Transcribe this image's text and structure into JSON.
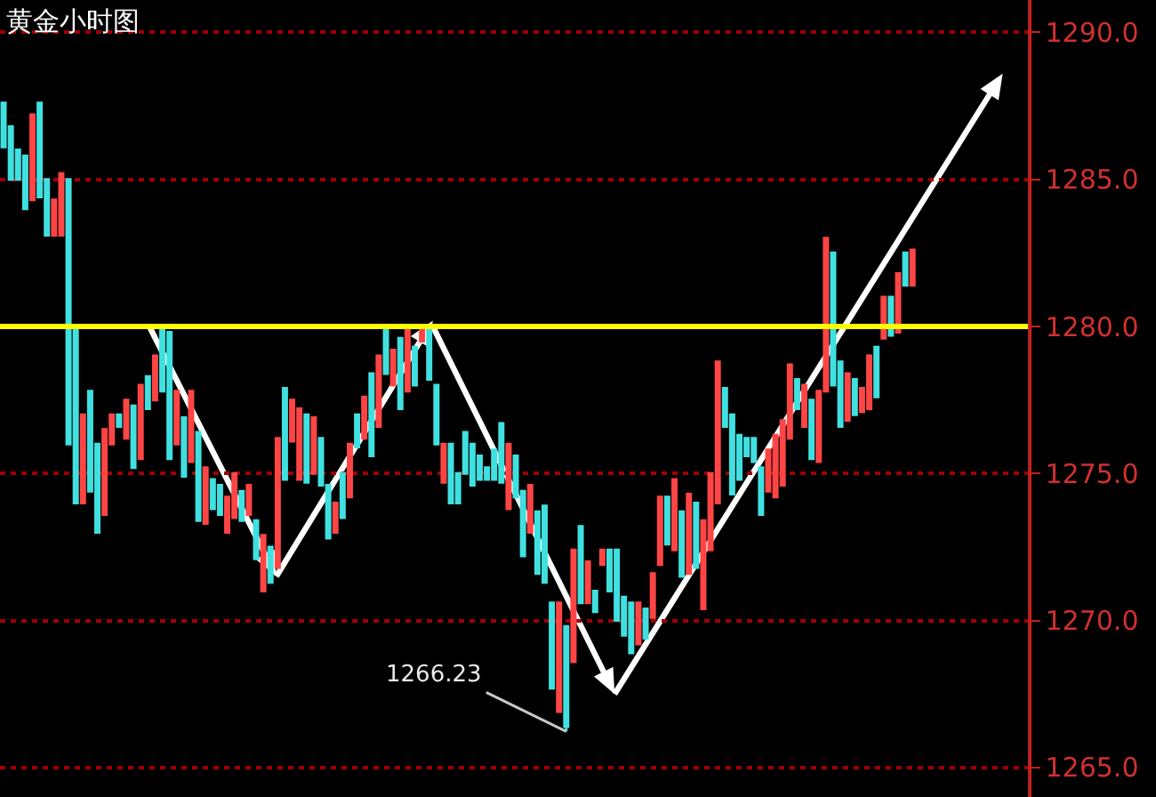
{
  "chart_data": {
    "type": "candlestick",
    "title": "黄金小时图",
    "categories": [
      null,
      null,
      null,
      null,
      null,
      null,
      null,
      null,
      null,
      null,
      null,
      null,
      null,
      null,
      null,
      null,
      null,
      null,
      null,
      null,
      null,
      null,
      null,
      null,
      null,
      null,
      null,
      null,
      null,
      null,
      null,
      null,
      null,
      null,
      null,
      null,
      null,
      null,
      null,
      null,
      null,
      null,
      null,
      null,
      null,
      null,
      null,
      null,
      null,
      null,
      null,
      null,
      null,
      null,
      null,
      null,
      null,
      null,
      null,
      null,
      null,
      null,
      null,
      null,
      null,
      null,
      null,
      null,
      null,
      null,
      null,
      null,
      null,
      null,
      null,
      null,
      null,
      null,
      null,
      null,
      null,
      null,
      null,
      null,
      null,
      null,
      null,
      null,
      null,
      null,
      null,
      null,
      null,
      null,
      null,
      null,
      null,
      null,
      null,
      null,
      null,
      null,
      null,
      null,
      null,
      null,
      null,
      null,
      null,
      null,
      null,
      null,
      null,
      null,
      null,
      null,
      null,
      null,
      null,
      null,
      null,
      null,
      null,
      null,
      null,
      null,
      null
    ],
    "ohlc": [
      [
        1287.6,
        1287.6,
        1286.1,
        1286.1
      ],
      [
        1286.8,
        1286.8,
        1285.0,
        1285.0
      ],
      [
        1286.0,
        1286.0,
        1285.0,
        1285.0
      ],
      [
        1285.8,
        1285.8,
        1284.0,
        1284.0
      ],
      [
        1284.3,
        1287.2,
        1284.3,
        1287.2
      ],
      [
        1287.6,
        1287.6,
        1284.4,
        1284.4
      ],
      [
        1285.0,
        1285.0,
        1283.1,
        1283.1
      ],
      [
        1283.1,
        1284.3,
        1283.1,
        1284.3
      ],
      [
        1283.1,
        1285.2,
        1283.1,
        1285.2
      ],
      [
        1285.0,
        1285.0,
        1276.0,
        1276.0
      ],
      [
        1279.9,
        1279.9,
        1274.0,
        1274.0
      ],
      [
        1274.0,
        1277.0,
        1274.0,
        1277.0
      ],
      [
        1277.8,
        1277.8,
        1274.4,
        1274.4
      ],
      [
        1276.0,
        1276.0,
        1273.0,
        1273.0
      ],
      [
        1273.6,
        1276.5,
        1273.6,
        1276.5
      ],
      [
        1276.0,
        1277.0,
        1276.0,
        1277.0
      ],
      [
        1277.0,
        1277.0,
        1276.6,
        1276.6
      ],
      [
        1276.2,
        1277.5,
        1276.2,
        1277.5
      ],
      [
        1277.3,
        1277.3,
        1275.2,
        1275.2
      ],
      [
        1275.5,
        1278.0,
        1275.5,
        1278.0
      ],
      [
        1278.3,
        1278.3,
        1277.2,
        1277.2
      ],
      [
        1277.5,
        1279.0,
        1277.5,
        1279.0
      ],
      [
        1280.0,
        1280.0,
        1277.8,
        1277.8
      ],
      [
        1279.8,
        1279.8,
        1275.5,
        1275.5
      ],
      [
        1276.0,
        1277.8,
        1276.0,
        1277.8
      ],
      [
        1276.9,
        1276.9,
        1274.9,
        1274.9
      ],
      [
        1275.4,
        1277.8,
        1275.4,
        1277.8
      ],
      [
        1276.4,
        1276.4,
        1273.4,
        1273.4
      ],
      [
        1273.3,
        1275.2,
        1273.3,
        1275.2
      ],
      [
        1274.8,
        1274.8,
        1273.8,
        1273.8
      ],
      [
        1274.6,
        1274.6,
        1273.6,
        1273.6
      ],
      [
        1273.0,
        1274.2,
        1273.0,
        1274.2
      ],
      [
        1273.5,
        1275.0,
        1273.5,
        1275.0
      ],
      [
        1274.4,
        1274.4,
        1273.4,
        1273.4
      ],
      [
        1273.6,
        1274.6,
        1273.6,
        1274.6
      ],
      [
        1273.4,
        1273.4,
        1272.1,
        1272.1
      ],
      [
        1271.0,
        1272.9,
        1271.0,
        1272.9
      ],
      [
        1272.5,
        1272.5,
        1271.3,
        1271.3
      ],
      [
        1271.8,
        1276.2,
        1271.8,
        1276.2
      ],
      [
        1277.9,
        1277.9,
        1274.8,
        1274.8
      ],
      [
        1276.1,
        1277.5,
        1276.1,
        1277.5
      ],
      [
        1274.8,
        1277.2,
        1274.8,
        1277.2
      ],
      [
        1277.0,
        1277.0,
        1274.7,
        1274.7
      ],
      [
        1275.0,
        1276.9,
        1275.0,
        1276.9
      ],
      [
        1276.2,
        1276.2,
        1274.6,
        1274.6
      ],
      [
        1274.6,
        1274.6,
        1272.8,
        1272.8
      ],
      [
        1273.0,
        1274.0,
        1273.0,
        1274.0
      ],
      [
        1275.0,
        1275.0,
        1273.5,
        1273.5
      ],
      [
        1274.2,
        1276.0,
        1274.2,
        1276.0
      ],
      [
        1277.0,
        1277.0,
        1275.9,
        1275.9
      ],
      [
        1276.2,
        1277.6,
        1276.2,
        1277.6
      ],
      [
        1278.4,
        1278.4,
        1275.6,
        1275.6
      ],
      [
        1276.6,
        1279.0,
        1276.6,
        1279.0
      ],
      [
        1280.0,
        1280.0,
        1278.4,
        1278.4
      ],
      [
        1278.0,
        1279.2,
        1278.0,
        1279.2
      ],
      [
        1279.6,
        1279.6,
        1277.2,
        1277.2
      ],
      [
        1277.8,
        1279.9,
        1277.8,
        1279.9
      ],
      [
        1279.3,
        1279.3,
        1278.0,
        1278.0
      ],
      [
        1279.5,
        1280.0,
        1279.5,
        1280.0
      ],
      [
        1280.0,
        1280.0,
        1278.2,
        1278.2
      ],
      [
        1278.0,
        1278.0,
        1276.0,
        1276.0
      ],
      [
        1274.7,
        1276.0,
        1274.7,
        1276.0
      ],
      [
        1276.0,
        1276.0,
        1274.0,
        1274.0
      ],
      [
        1275.0,
        1275.0,
        1274.0,
        1274.0
      ],
      [
        1276.4,
        1276.4,
        1275.0,
        1275.0
      ],
      [
        1276.0,
        1276.0,
        1274.6,
        1274.6
      ],
      [
        1275.6,
        1275.6,
        1274.8,
        1274.8
      ],
      [
        1275.2,
        1275.2,
        1274.8,
        1274.8
      ],
      [
        1275.8,
        1275.8,
        1274.8,
        1274.8
      ],
      [
        1276.7,
        1276.7,
        1274.7,
        1274.7
      ],
      [
        1273.8,
        1276.0,
        1273.8,
        1276.0
      ],
      [
        1275.6,
        1275.6,
        1274.2,
        1274.2
      ],
      [
        1274.4,
        1274.4,
        1272.2,
        1272.2
      ],
      [
        1273.0,
        1274.6,
        1273.0,
        1274.6
      ],
      [
        1273.7,
        1273.7,
        1271.6,
        1271.6
      ],
      [
        1273.9,
        1273.9,
        1271.3,
        1271.3
      ],
      [
        1270.6,
        1270.6,
        1267.7,
        1267.7
      ],
      [
        1266.9,
        1270.6,
        1266.9,
        1270.6
      ],
      [
        1269.8,
        1269.8,
        1266.23,
        1266.4
      ],
      [
        1268.6,
        1272.4,
        1268.6,
        1272.4
      ],
      [
        1273.2,
        1273.2,
        1270.6,
        1270.6
      ],
      [
        1270.6,
        1272.0,
        1270.6,
        1272.0
      ],
      [
        1271.0,
        1271.0,
        1270.3,
        1270.3
      ],
      [
        1271.9,
        1272.4,
        1271.9,
        1272.4
      ],
      [
        1272.4,
        1272.4,
        1271.0,
        1271.0
      ],
      [
        1272.4,
        1272.4,
        1270.0,
        1270.0
      ],
      [
        1270.8,
        1270.8,
        1269.5,
        1269.5
      ],
      [
        1270.6,
        1270.6,
        1268.9,
        1268.9
      ],
      [
        1269.2,
        1270.6,
        1269.2,
        1270.6
      ],
      [
        1270.4,
        1270.4,
        1269.4,
        1269.4
      ],
      [
        1270.1,
        1271.6,
        1270.1,
        1271.6
      ],
      [
        1271.9,
        1274.2,
        1271.9,
        1274.2
      ],
      [
        1274.2,
        1274.2,
        1272.6,
        1272.6
      ],
      [
        1272.4,
        1274.8,
        1272.4,
        1274.8
      ],
      [
        1273.7,
        1273.7,
        1271.5,
        1271.5
      ],
      [
        1271.6,
        1274.3,
        1271.6,
        1274.3
      ],
      [
        1274.0,
        1274.0,
        1271.8,
        1271.8
      ],
      [
        1270.4,
        1273.4,
        1270.4,
        1273.4
      ],
      [
        1272.4,
        1275.0,
        1272.4,
        1275.0
      ],
      [
        1274.0,
        1278.8,
        1274.0,
        1278.8
      ],
      [
        1277.9,
        1277.9,
        1276.6,
        1276.6
      ],
      [
        1277.0,
        1277.0,
        1274.3,
        1274.3
      ],
      [
        1276.3,
        1276.3,
        1274.8,
        1274.8
      ],
      [
        1276.2,
        1276.2,
        1275.6,
        1275.6
      ],
      [
        1276.2,
        1276.2,
        1275.4,
        1275.4
      ],
      [
        1275.2,
        1275.2,
        1273.6,
        1273.6
      ],
      [
        1274.4,
        1275.8,
        1274.4,
        1275.8
      ],
      [
        1274.2,
        1276.3,
        1274.2,
        1276.3
      ],
      [
        1274.6,
        1276.8,
        1274.6,
        1276.8
      ],
      [
        1276.2,
        1278.7,
        1276.2,
        1278.7
      ],
      [
        1278.2,
        1278.2,
        1277.2,
        1277.2
      ],
      [
        1276.6,
        1278.0,
        1276.6,
        1278.0
      ],
      [
        1277.5,
        1277.5,
        1275.5,
        1275.5
      ],
      [
        1275.4,
        1277.8,
        1275.4,
        1277.8
      ],
      [
        1277.8,
        1283.0,
        1277.8,
        1283.0
      ],
      [
        1282.5,
        1282.5,
        1278.0,
        1278.0
      ],
      [
        1278.8,
        1278.8,
        1276.6,
        1276.6
      ],
      [
        1276.8,
        1278.4,
        1276.8,
        1278.4
      ],
      [
        1278.2,
        1278.2,
        1277.0,
        1277.0
      ],
      [
        1277.1,
        1277.9,
        1277.1,
        1277.9
      ],
      [
        1277.2,
        1279.0,
        1277.2,
        1279.0
      ],
      [
        1279.3,
        1279.3,
        1277.6,
        1277.6
      ],
      [
        1279.6,
        1281.0,
        1279.6,
        1281.0
      ],
      [
        1281.0,
        1281.0,
        1279.7,
        1279.7
      ],
      [
        1279.8,
        1281.8,
        1279.8,
        1281.8
      ],
      [
        1282.5,
        1282.5,
        1281.4,
        1281.4
      ],
      [
        1281.4,
        1282.6,
        1281.4,
        1282.6
      ]
    ],
    "colors": [
      "#40e0e0",
      "#40e0e0",
      "#40e0e0",
      "#40e0e0",
      "#ff4545",
      "#40e0e0",
      "#40e0e0",
      "#ff4545",
      "#ff4545",
      "#40e0e0",
      "#40e0e0",
      "#ff4545",
      "#40e0e0",
      "#40e0e0",
      "#ff4545",
      "#ff4545",
      "#40e0e0",
      "#ff4545",
      "#40e0e0",
      "#ff4545",
      "#40e0e0",
      "#ff4545",
      "#40e0e0",
      "#40e0e0",
      "#ff4545",
      "#40e0e0",
      "#ff4545",
      "#40e0e0",
      "#ff4545",
      "#40e0e0",
      "#40e0e0",
      "#ff4545",
      "#ff4545",
      "#40e0e0",
      "#ff4545",
      "#40e0e0",
      "#ff4545",
      "#40e0e0",
      "#ff4545",
      "#40e0e0",
      "#ff4545",
      "#ff4545",
      "#40e0e0",
      "#ff4545",
      "#40e0e0",
      "#40e0e0",
      "#ff4545",
      "#40e0e0",
      "#ff4545",
      "#40e0e0",
      "#ff4545",
      "#40e0e0",
      "#ff4545",
      "#40e0e0",
      "#ff4545",
      "#40e0e0",
      "#ff4545",
      "#40e0e0",
      "#ff4545",
      "#40e0e0",
      "#40e0e0",
      "#ff4545",
      "#40e0e0",
      "#40e0e0",
      "#40e0e0",
      "#40e0e0",
      "#40e0e0",
      "#40e0e0",
      "#40e0e0",
      "#40e0e0",
      "#ff4545",
      "#40e0e0",
      "#40e0e0",
      "#ff4545",
      "#40e0e0",
      "#40e0e0",
      "#40e0e0",
      "#ff4545",
      "#40e0e0",
      "#ff4545",
      "#40e0e0",
      "#ff4545",
      "#40e0e0",
      "#ff4545",
      "#40e0e0",
      "#40e0e0",
      "#40e0e0",
      "#40e0e0",
      "#ff4545",
      "#40e0e0",
      "#ff4545",
      "#ff4545",
      "#40e0e0",
      "#ff4545",
      "#40e0e0",
      "#ff4545",
      "#40e0e0",
      "#ff4545",
      "#ff4545",
      "#ff4545",
      "#40e0e0",
      "#40e0e0",
      "#40e0e0",
      "#40e0e0",
      "#40e0e0",
      "#40e0e0",
      "#ff4545",
      "#ff4545",
      "#ff4545",
      "#ff4545",
      "#40e0e0",
      "#ff4545",
      "#40e0e0",
      "#ff4545",
      "#ff4545",
      "#40e0e0",
      "#40e0e0",
      "#ff4545",
      "#40e0e0",
      "#ff4545",
      "#ff4545",
      "#40e0e0",
      "#ff4545",
      "#40e0e0",
      "#ff4545",
      "#40e0e0",
      "#ff4545"
    ],
    "ylim": [
      1264.0,
      1291.1
    ],
    "yticks": [
      {
        "value": 1265,
        "label": "1265.0"
      },
      {
        "value": 1270,
        "label": "1270.0"
      },
      {
        "value": 1275,
        "label": "1275.0"
      },
      {
        "value": 1280,
        "label": "1280.0"
      },
      {
        "value": 1285,
        "label": "1285.0"
      },
      {
        "value": 1290,
        "label": "1290.0"
      }
    ],
    "grid": "y",
    "tick_labels": "y",
    "ref_lines": [
      {
        "axis": "y",
        "value": 1280,
        "color": "#ffff00"
      }
    ],
    "annotations": [
      "1266.23"
    ]
  }
}
